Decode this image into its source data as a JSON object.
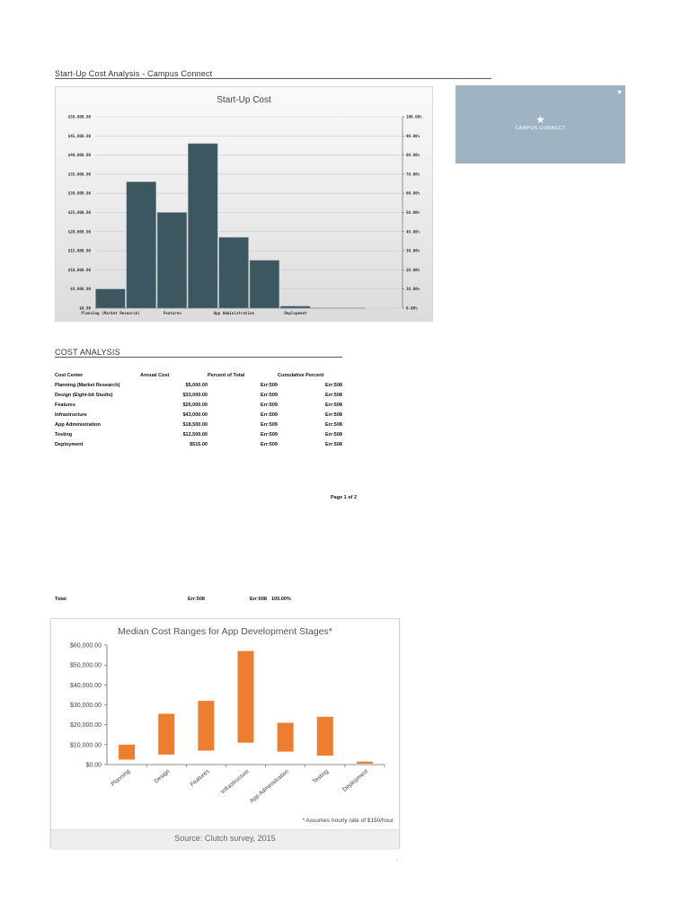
{
  "doc": {
    "header_title": "Start-Up Cost Analysis - Campus Connect",
    "section_title": "COST ANALYSIS",
    "page_label": "Page 1 of 2",
    "total_row": {
      "label": "Total",
      "annual": "Err:508",
      "pct": "Err:508",
      "cum": "100.00%"
    },
    "dot": "."
  },
  "banner": {
    "name": "CAMPUS CONNECT",
    "icon": "star-icon",
    "corner_icon": "heart-icon",
    "bg_color": "#9eb4c2"
  },
  "table": {
    "headers": [
      "Cost Center",
      "Annual Cost",
      "Percent of Total",
      "Cumulative Percent"
    ],
    "rows": [
      [
        "Planning (Market Research)",
        "$5,000.00",
        "Err:509",
        "Err:508"
      ],
      [
        "Design (Eight-bit Studio)",
        "$33,000.00",
        "Err:509",
        "Err:508"
      ],
      [
        "Features",
        "$25,000.00",
        "Err:509",
        "Err:508"
      ],
      [
        "Infrastructure",
        "$43,000.00",
        "Err:509",
        "Err:508"
      ],
      [
        "App Administration",
        "$18,500.00",
        "Err:509",
        "Err:508"
      ],
      [
        "Testing",
        "$12,500.00",
        "Err:509",
        "Err:508"
      ],
      [
        "Deployment",
        "$515.00",
        "Err:509",
        "Err:508"
      ]
    ]
  },
  "chart_data": [
    {
      "type": "bar",
      "title": "Start-Up Cost",
      "categories": [
        "Planning (Market Research)",
        "Design (Eight-bit Studio)",
        "Features",
        "Infrastructure",
        "App Administration",
        "Testing",
        "Deployment"
      ],
      "x_tick_labels": [
        "Planning (Market Research)",
        "Features",
        "App Administration",
        "Deployment"
      ],
      "values": [
        5000,
        33000,
        25000,
        43000,
        18500,
        12500,
        515
      ],
      "ylim": [
        0,
        50000
      ],
      "y_ticks": [
        "$0.00",
        "$5,000.00",
        "$10,000.00",
        "$15,000.00",
        "$20,000.00",
        "$25,000.00",
        "$30,000.00",
        "$35,000.00",
        "$40,000.00",
        "$45,000.00",
        "$50,000.00"
      ],
      "y2_ticks": [
        "0.00%",
        "10.00%",
        "20.00%",
        "30.00%",
        "40.00%",
        "50.00%",
        "60.00%",
        "70.00%",
        "80.00%",
        "90.00%",
        "100.00%"
      ],
      "bar_color": "#3d5760",
      "grid": true
    },
    {
      "type": "bar",
      "subtype": "floating-range",
      "title": "Median Cost Ranges for App Development Stages*",
      "categories": [
        "Planning",
        "Design",
        "Features",
        "Infrastructure",
        "App Administration",
        "Testing",
        "Deployment"
      ],
      "low": [
        2500,
        5000,
        7000,
        11000,
        6500,
        4500,
        500
      ],
      "high": [
        10000,
        25500,
        32000,
        57000,
        21000,
        24000,
        1500
      ],
      "ylim": [
        0,
        60000
      ],
      "y_ticks": [
        "$0.00",
        "$10,000.00",
        "$20,000.00",
        "$30,000.00",
        "$40,000.00",
        "$50,000.00",
        "$60,000.00"
      ],
      "bar_color": "#ed7d31",
      "grid": false,
      "note": "* Assumes hourly rate of $150/hour",
      "source": "Source: Clutch survey, 2015"
    }
  ]
}
